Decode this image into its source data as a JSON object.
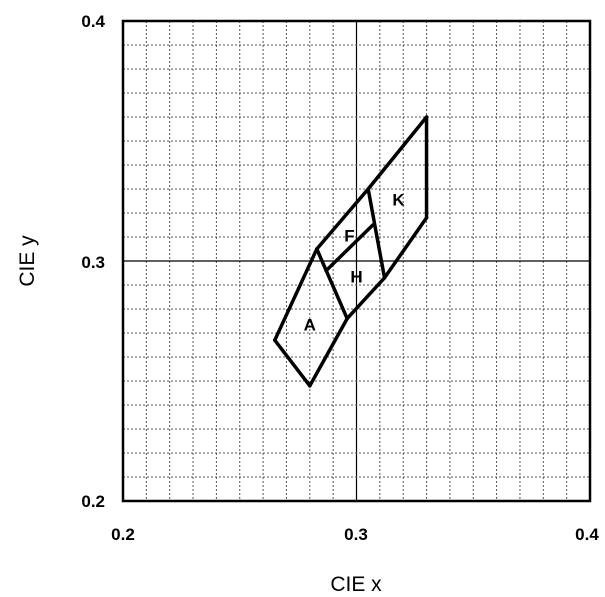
{
  "chart_data": {
    "type": "line",
    "xlabel": "CIE x",
    "ylabel": "CIE y",
    "xlim": [
      0.2,
      0.4
    ],
    "ylim": [
      0.2,
      0.4
    ],
    "x_ticks": [
      "0.2",
      "0.3",
      "0.4"
    ],
    "y_ticks": [
      "0.2",
      "0.3",
      "0.4"
    ],
    "grid": true,
    "minor_grid_step": 0.01,
    "major_gridlines": {
      "x": 0.3,
      "y": 0.3
    },
    "segments": [
      {
        "x1": 0.265,
        "y1": 0.267,
        "x2": 0.28,
        "y2": 0.248
      },
      {
        "x1": 0.28,
        "y1": 0.248,
        "x2": 0.296,
        "y2": 0.276
      },
      {
        "x1": 0.296,
        "y1": 0.276,
        "x2": 0.312,
        "y2": 0.293
      },
      {
        "x1": 0.312,
        "y1": 0.293,
        "x2": 0.33,
        "y2": 0.318
      },
      {
        "x1": 0.33,
        "y1": 0.318,
        "x2": 0.33,
        "y2": 0.36
      },
      {
        "x1": 0.33,
        "y1": 0.36,
        "x2": 0.305,
        "y2": 0.33
      },
      {
        "x1": 0.305,
        "y1": 0.33,
        "x2": 0.283,
        "y2": 0.305
      },
      {
        "x1": 0.283,
        "y1": 0.305,
        "x2": 0.265,
        "y2": 0.267
      },
      {
        "x1": 0.283,
        "y1": 0.305,
        "x2": 0.296,
        "y2": 0.276
      },
      {
        "x1": 0.287,
        "y1": 0.296,
        "x2": 0.307,
        "y2": 0.315
      },
      {
        "x1": 0.305,
        "y1": 0.33,
        "x2": 0.312,
        "y2": 0.293
      }
    ],
    "regions": [
      {
        "label": "A",
        "x": 0.28,
        "y": 0.273
      },
      {
        "label": "F",
        "x": 0.297,
        "y": 0.31
      },
      {
        "label": "H",
        "x": 0.3,
        "y": 0.293
      },
      {
        "label": "K",
        "x": 0.318,
        "y": 0.325
      }
    ]
  }
}
